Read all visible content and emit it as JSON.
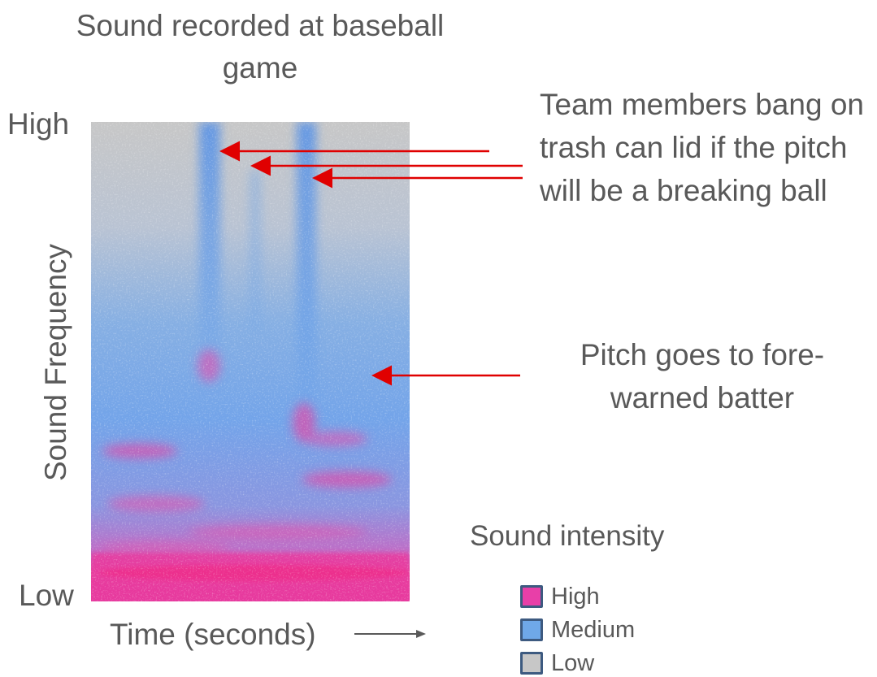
{
  "title": "Sound recorded at baseball game",
  "axes": {
    "y_high": "High",
    "y_low": "Low",
    "y_title": "Sound Frequency",
    "x_title": "Time (seconds)"
  },
  "annotations": {
    "trash_can": "Team members bang on trash can lid if the pitch will be a breaking ball",
    "pitch": "Pitch goes to fore-warned batter"
  },
  "legend": {
    "title": "Sound intensity",
    "items": [
      {
        "label": "High",
        "color": "#e83fa8"
      },
      {
        "label": "Medium",
        "color": "#6fa8e8"
      },
      {
        "label": "Low",
        "color": "#c7c7c7"
      }
    ]
  },
  "colors": {
    "arrow": "#e00000",
    "text": "#595959",
    "spectrogram_low": "#c7c7c7",
    "spectrogram_medium": "#6fa8e8",
    "spectrogram_high": "#e83fa8"
  }
}
